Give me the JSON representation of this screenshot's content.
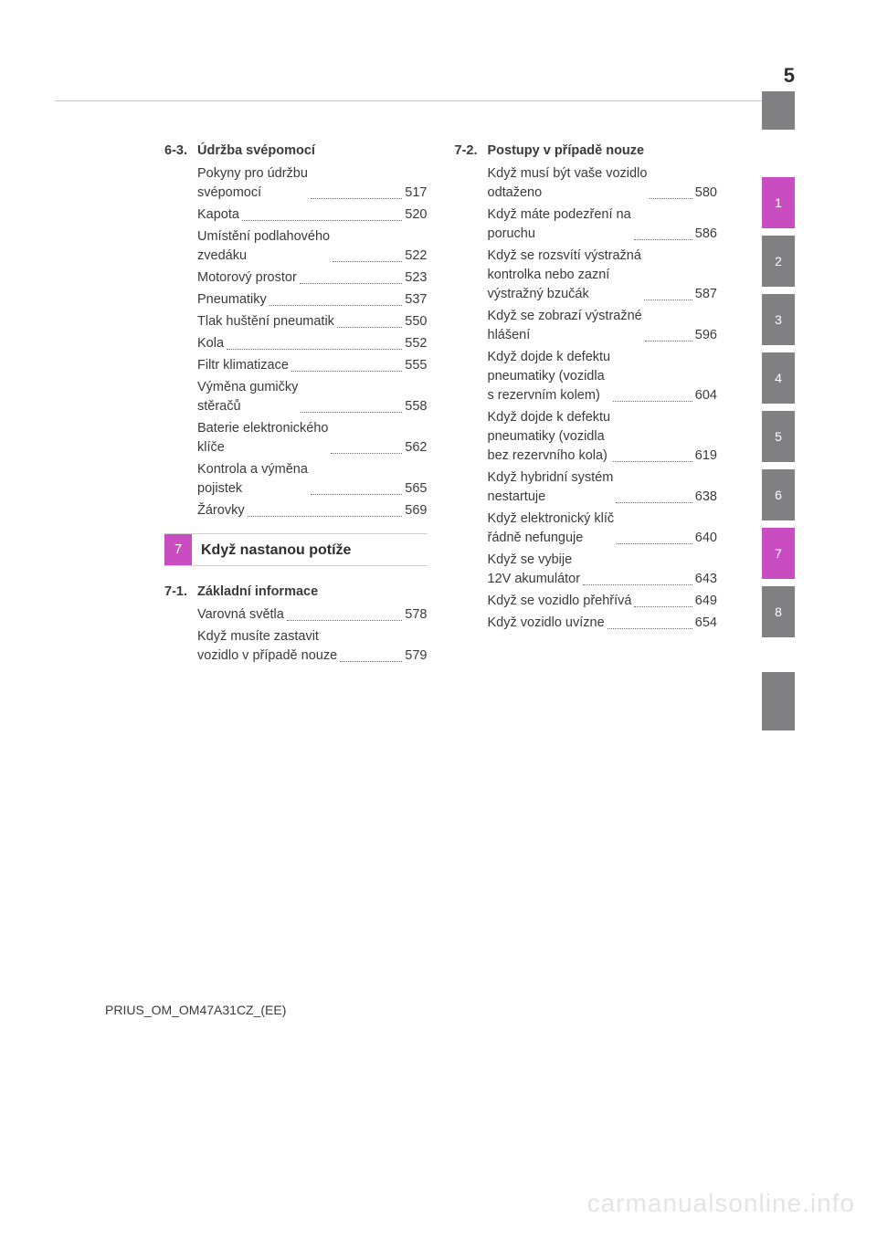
{
  "page_number": "5",
  "footer": "PRIUS_OM_OM47A31CZ_(EE)",
  "watermark": "carmanualsonline.info",
  "tabs": {
    "gutter_block": {
      "bg": "#808083",
      "label": ""
    },
    "items": [
      {
        "label": "1",
        "bg": "#c94cc0"
      },
      {
        "label": "2",
        "bg": "#808083"
      },
      {
        "label": "3",
        "bg": "#808083"
      },
      {
        "label": "4",
        "bg": "#808083"
      },
      {
        "label": "5",
        "bg": "#808083"
      },
      {
        "label": "6",
        "bg": "#808083"
      },
      {
        "label": "7",
        "bg": "#c94cc0"
      },
      {
        "label": "8",
        "bg": "#808083"
      }
    ],
    "trailing": [
      {
        "label": "",
        "bg": "#808083"
      },
      {
        "label": "",
        "bg": "#808083"
      }
    ]
  },
  "left": {
    "sec63": {
      "num": "6-3.",
      "title": "Údržba svépomocí",
      "entries": [
        {
          "text": "Pokyny pro údržbu\nsvépomocí",
          "page": "517"
        },
        {
          "text": "Kapota",
          "page": "520"
        },
        {
          "text": "Umístění podlahového\nzvedáku",
          "page": "522"
        },
        {
          "text": "Motorový prostor",
          "page": "523"
        },
        {
          "text": "Pneumatiky",
          "page": "537"
        },
        {
          "text": "Tlak huštění pneumatik",
          "page": "550"
        },
        {
          "text": "Kola",
          "page": "552"
        },
        {
          "text": "Filtr klimatizace",
          "page": "555"
        },
        {
          "text": "Výměna gumičky\nstěračů",
          "page": "558"
        },
        {
          "text": "Baterie elektronického\nklíče",
          "page": "562"
        },
        {
          "text": "Kontrola a výměna\npojistek",
          "page": "565"
        },
        {
          "text": "Žárovky",
          "page": "569"
        }
      ]
    },
    "chapter7": {
      "chip": "7",
      "title": "Když nastanou potíže"
    },
    "sec71": {
      "num": "7-1.",
      "title": "Základní informace",
      "entries": [
        {
          "text": "Varovná světla",
          "page": "578"
        },
        {
          "text": "Když musíte zastavit\nvozidlo v případě nouze",
          "page": "579"
        }
      ]
    }
  },
  "right": {
    "sec72": {
      "num": "7-2.",
      "title": "Postupy v případě nouze",
      "entries": [
        {
          "text": "Když musí být vaše vozidlo\nodtaženo",
          "page": "580"
        },
        {
          "text": "Když máte podezření na\nporuchu",
          "page": "586"
        },
        {
          "text": "Když se rozsvítí výstražná\nkontrolka nebo zazní\nvýstražný bzučák",
          "page": "587"
        },
        {
          "text": "Když se zobrazí výstražné\nhlášení",
          "page": "596"
        },
        {
          "text": "Když dojde k defektu\npneumatiky (vozidla\ns rezervním kolem)",
          "page": "604"
        },
        {
          "text": "Když dojde k defektu\npneumatiky (vozidla\nbez rezervního kola)",
          "page": "619"
        },
        {
          "text": "Když hybridní systém\nnestartuje",
          "page": "638"
        },
        {
          "text": "Když elektronický klíč\nřádně nefunguje",
          "page": "640"
        },
        {
          "text": "Když se vybije\n12V akumulátor",
          "page": "643"
        },
        {
          "text": "Když se vozidlo přehřívá",
          "page": "649"
        },
        {
          "text": "Když vozidlo uvízne",
          "page": "654"
        }
      ]
    }
  }
}
